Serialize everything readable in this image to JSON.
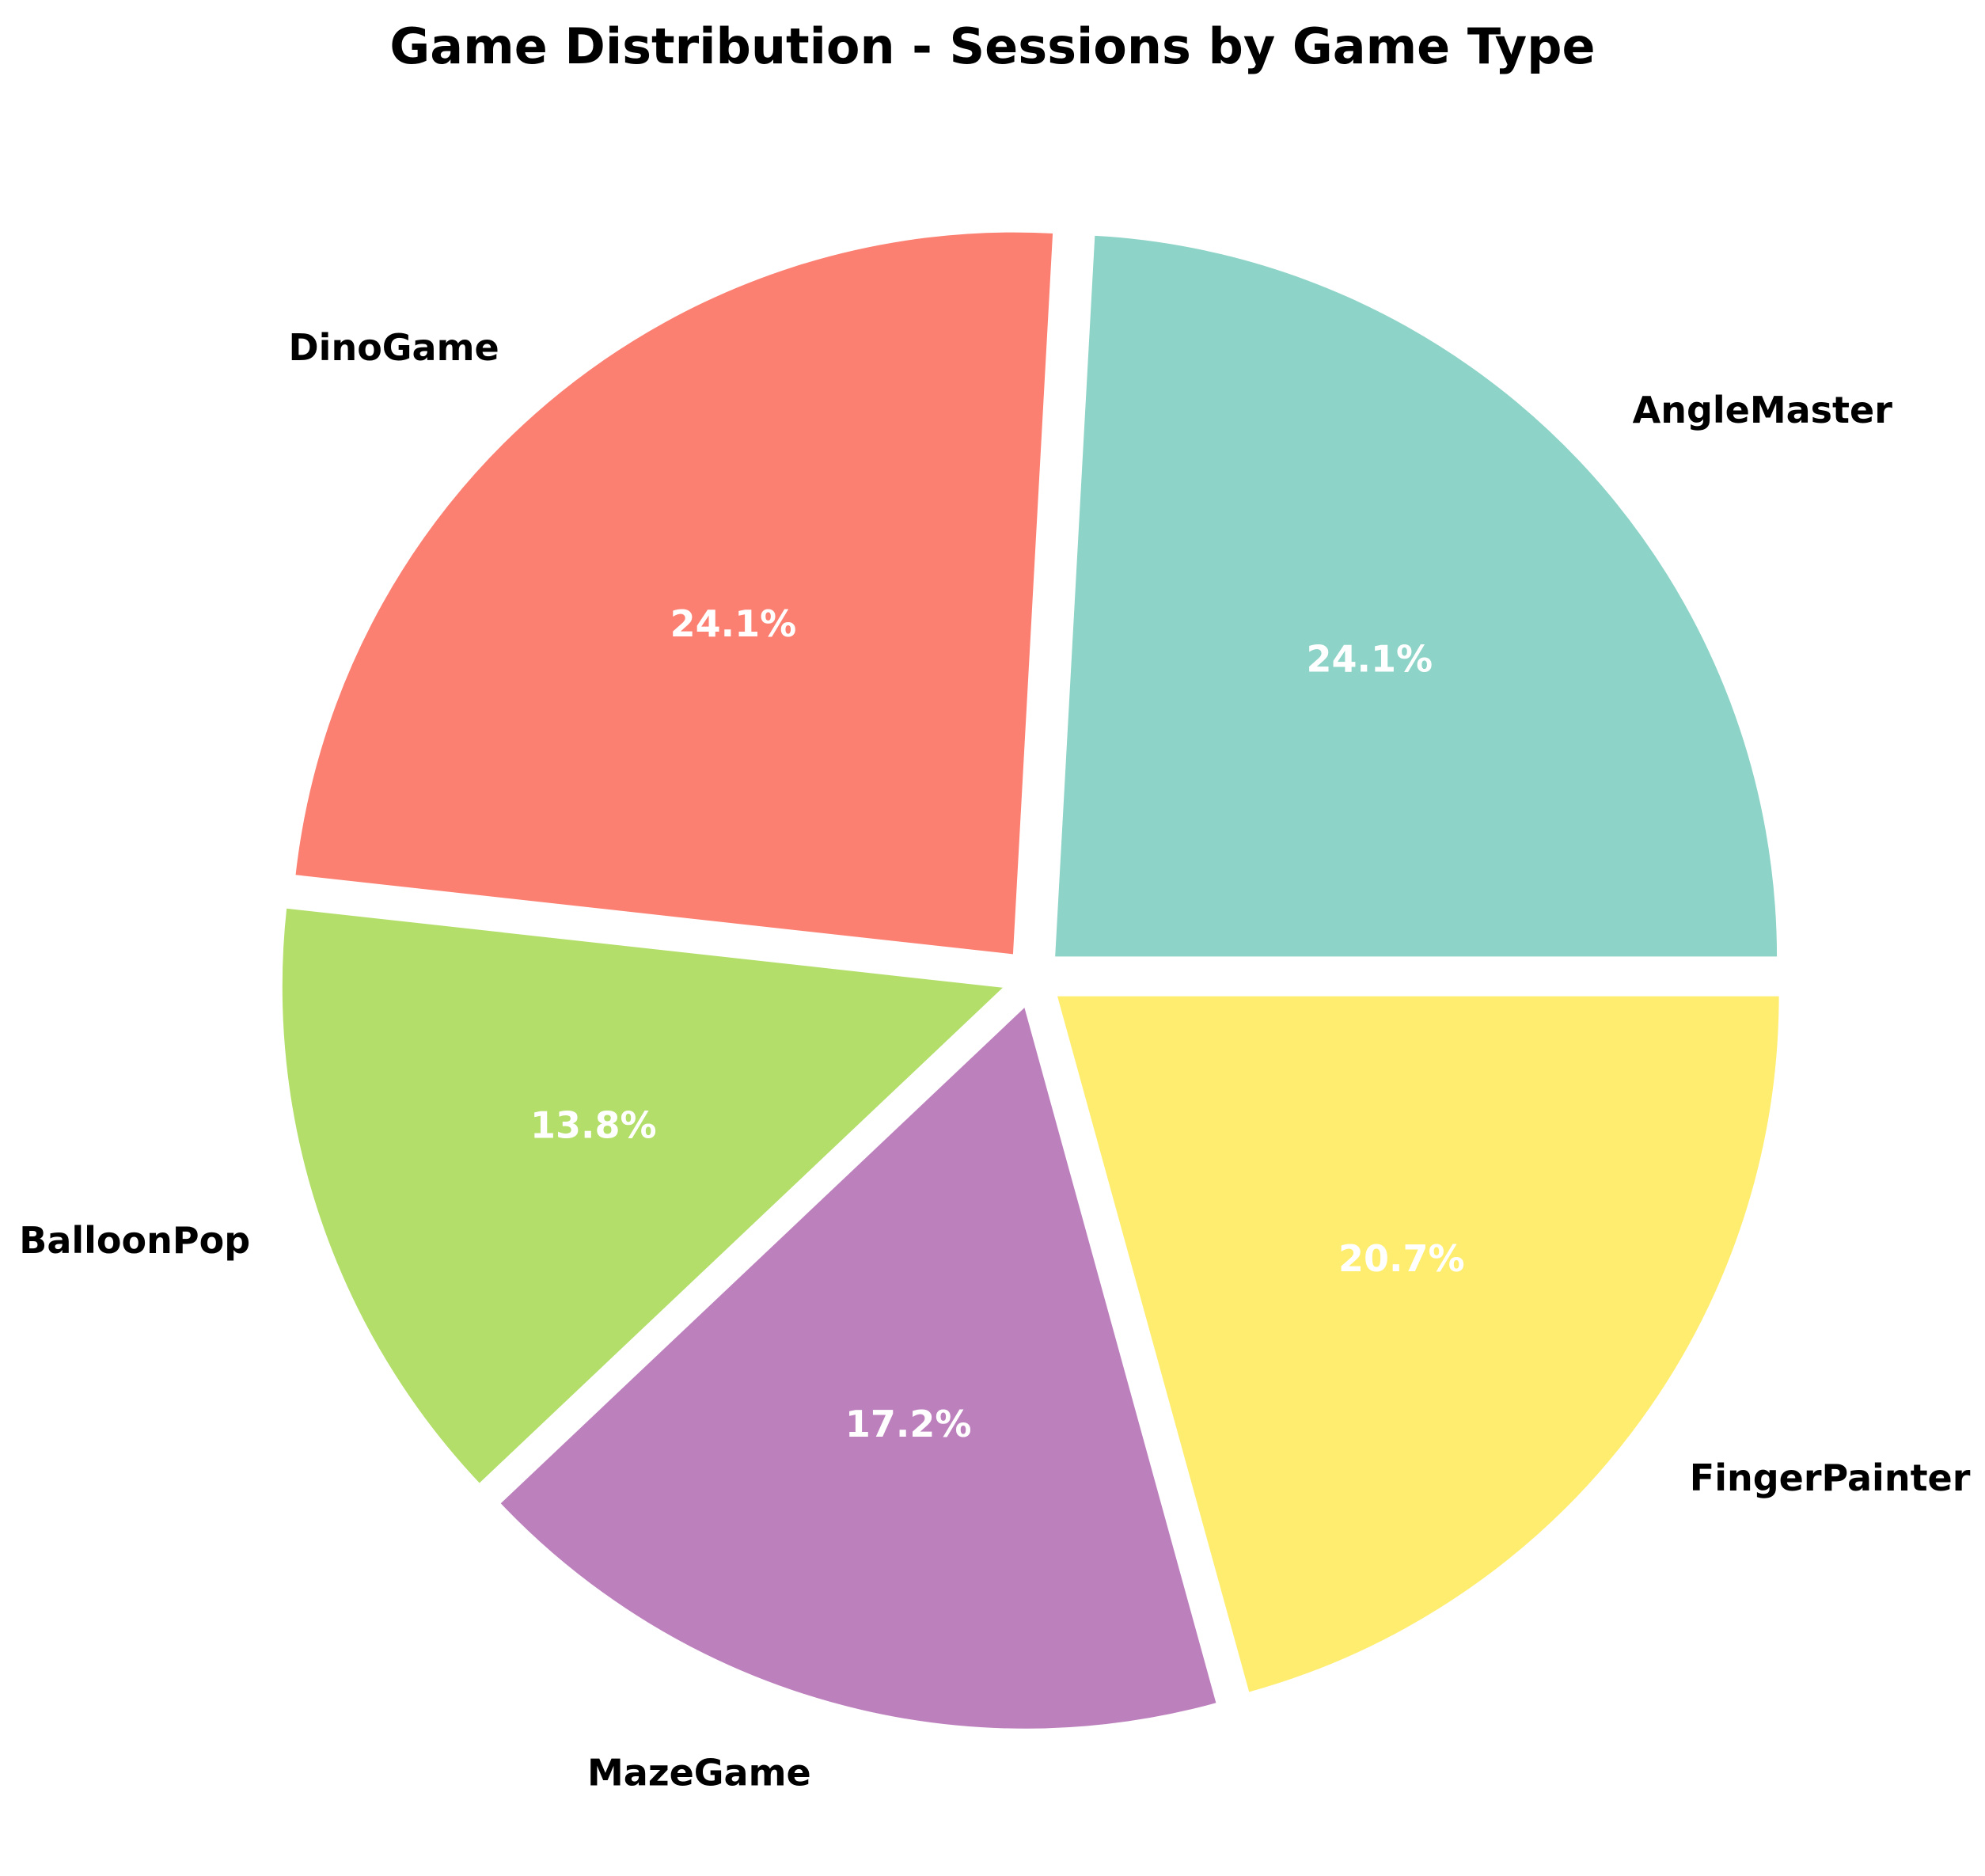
{
  "chart_data": {
    "type": "pie",
    "title": "Game Distribution - Sessions by Game Type",
    "categories": [
      "AngleMaster",
      "DinoGame",
      "BalloonPop",
      "MazeGame",
      "FingerPainter"
    ],
    "values": [
      24.1,
      24.1,
      13.8,
      17.2,
      20.7
    ],
    "value_labels": [
      "24.1%",
      "24.1%",
      "13.8%",
      "17.2%",
      "20.7%"
    ],
    "colors": [
      "#8dd3c7",
      "#fb8072",
      "#b3de69",
      "#bc80bd",
      "#ffed6f"
    ],
    "start_angle_deg": 0,
    "direction": "counterclockwise",
    "exploded": true,
    "legend": "none"
  }
}
